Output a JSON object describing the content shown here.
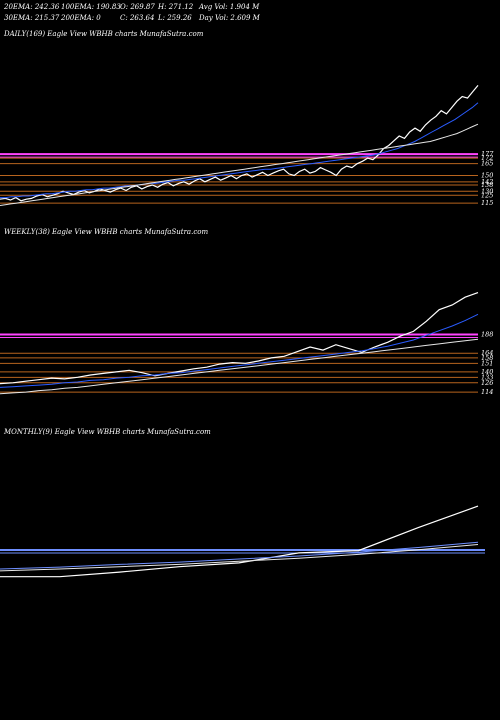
{
  "header": {
    "row1": [
      "20EMA: 242.36",
      "100EMA: 190.83",
      "O: 269.87",
      "H: 271.12",
      "Avg Vol: 1.904 M"
    ],
    "row2": [
      "30EMA: 215.37",
      "200EMA: 0",
      "C: 263.64",
      "L: 259.26",
      "Day Vol: 2.609 M"
    ]
  },
  "panels": [
    {
      "id": "daily",
      "label": "DAILY(169) Eagle   View  WBHB charts MunafaSutra.com"
    },
    {
      "id": "weekly",
      "label": "WEEKLY(38) Eagle   View  WBHB charts MunafaSutra.com"
    },
    {
      "id": "monthly",
      "label": "MONTHLY(9) Eagle   View  WBHB charts MunafaSutra.com"
    }
  ],
  "chart_data": [
    {
      "type": "line",
      "title": "DAILY(169) Eagle View WBHB charts MunafaSutra.com",
      "ylim": [
        100,
        300
      ],
      "price_levels": [
        "177",
        "172",
        "165",
        "150",
        "142",
        "138",
        "130",
        "125",
        "115"
      ],
      "level_values": [
        177,
        172,
        165,
        150,
        142,
        138,
        130,
        125,
        115
      ],
      "series": [
        {
          "name": "",
          "color": "#ffffff",
          "values": [
            120,
            121,
            119,
            122,
            118,
            120,
            121,
            124,
            126,
            123,
            125,
            127,
            130,
            128,
            126,
            129,
            131,
            128,
            130,
            133,
            131,
            129,
            132,
            134,
            131,
            135,
            137,
            133,
            136,
            138,
            135,
            139,
            141,
            137,
            140,
            142,
            139,
            143,
            146,
            142,
            145,
            148,
            144,
            147,
            150,
            146,
            150,
            152,
            148,
            151,
            154,
            150,
            153,
            156,
            158,
            152,
            150,
            155,
            158,
            153,
            155,
            160,
            157,
            154,
            150,
            158,
            162,
            160,
            165,
            168,
            172,
            170,
            176,
            184,
            188,
            194,
            200,
            197,
            205,
            210,
            206,
            214,
            220,
            225,
            232,
            228,
            236,
            244,
            250,
            248,
            256,
            264
          ]
        },
        {
          "name": "",
          "color": "#2a5cff",
          "values": [
            122,
            122,
            123,
            123,
            124,
            124,
            125,
            126,
            127,
            127,
            128,
            129,
            130,
            130,
            131,
            132,
            132,
            133,
            134,
            134,
            135,
            136,
            137,
            137,
            138,
            139,
            140,
            140,
            141,
            142,
            143,
            144,
            144,
            145,
            146,
            147,
            148,
            149,
            150,
            151,
            152,
            153,
            154,
            155,
            156,
            157,
            158,
            158,
            159,
            160,
            161,
            162,
            163,
            164,
            165,
            166,
            167,
            168,
            169,
            170,
            171,
            172,
            173,
            174,
            175,
            176,
            178,
            180,
            182,
            184,
            187,
            190,
            193,
            197,
            201,
            205,
            209,
            213,
            217,
            221,
            226,
            231,
            236,
            242
          ]
        },
        {
          "name": "",
          "color": "#e6e6e6",
          "values": [
            112,
            113,
            114,
            115,
            116,
            117,
            118,
            119,
            120,
            121,
            122,
            123,
            124,
            125,
            126,
            127,
            128,
            129,
            130,
            131,
            132,
            133,
            134,
            135,
            136,
            137,
            138,
            139,
            140,
            141,
            142,
            143,
            144,
            145,
            146,
            147,
            148,
            149,
            150,
            151,
            152,
            153,
            154,
            155,
            156,
            157,
            158,
            159,
            160,
            161,
            162,
            163,
            164,
            165,
            166,
            167,
            168,
            169,
            170,
            171,
            172,
            173,
            174,
            175,
            176,
            177,
            178,
            179,
            180,
            181,
            182,
            183,
            184,
            185,
            186,
            187,
            188,
            189,
            190,
            191,
            192,
            193,
            195,
            197,
            199,
            201,
            203,
            206,
            209,
            212,
            215
          ]
        }
      ]
    },
    {
      "type": "line",
      "title": "WEEKLY(38) Eagle View WBHB charts MunafaSutra.com",
      "ylim": [
        100,
        280
      ],
      "price_levels": [
        "188",
        "164",
        "158",
        "151",
        "140",
        "133",
        "126",
        "114"
      ],
      "level_values": [
        188,
        164,
        158,
        151,
        140,
        133,
        126,
        114
      ],
      "series": [
        {
          "name": "",
          "color": "#ffffff",
          "values": [
            125,
            126,
            128,
            130,
            132,
            131,
            133,
            136,
            138,
            140,
            142,
            139,
            135,
            138,
            141,
            144,
            146,
            150,
            152,
            151,
            154,
            158,
            160,
            166,
            172,
            168,
            175,
            170,
            165,
            172,
            178,
            186,
            192,
            205,
            220,
            226,
            236,
            242
          ]
        },
        {
          "name": "",
          "color": "#2a5cff",
          "values": [
            120,
            121,
            122,
            123,
            124,
            126,
            127,
            129,
            130,
            132,
            133,
            135,
            136,
            138,
            139,
            141,
            143,
            145,
            147,
            149,
            151,
            153,
            155,
            157,
            159,
            161,
            163,
            165,
            167,
            170,
            173,
            177,
            181,
            187,
            193,
            199,
            206,
            214
          ]
        },
        {
          "name": "",
          "color": "#e6e6e6",
          "values": [
            112,
            113,
            114,
            116,
            117,
            119,
            120,
            122,
            124,
            126,
            128,
            130,
            132,
            134,
            136,
            138,
            140,
            142,
            144,
            146,
            148,
            150,
            152,
            154,
            156,
            158,
            160,
            162,
            164,
            166,
            168,
            170,
            172,
            174,
            176,
            178,
            180,
            182
          ]
        }
      ]
    },
    {
      "type": "line",
      "title": "MONTHLY(9) Eagle View WBHB charts MunafaSutra.com",
      "series": [
        {
          "name": "",
          "color": "#ffffff",
          "values": [
            40,
            40,
            52,
            66,
            76,
            102,
            108,
            168,
            224
          ]
        },
        {
          "name": "",
          "color": "#6e8fff",
          "values": [
            60,
            65,
            72,
            78,
            86,
            94,
            104,
            116,
            130
          ]
        },
        {
          "name": "",
          "color": "#e6e6e6",
          "values": [
            55,
            60,
            66,
            72,
            80,
            88,
            98,
            110,
            124
          ]
        }
      ]
    }
  ],
  "colors": {
    "background": "#000000",
    "price": "#ffffff",
    "ema_fast": "#2a5cff",
    "ema_slow": "#e6e6e6",
    "band": "#ff44ff",
    "level": "#b8641e"
  }
}
